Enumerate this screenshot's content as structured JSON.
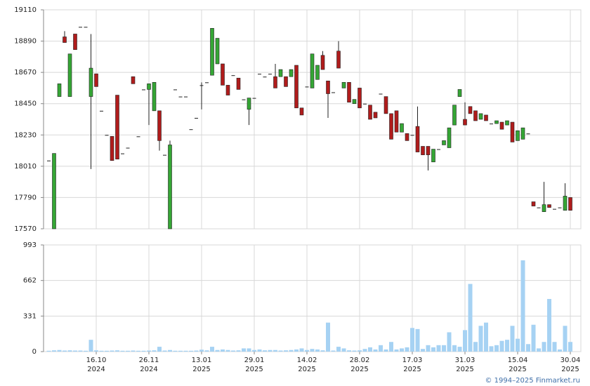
{
  "chart_data": [
    {
      "type": "candlestick",
      "up_color": "#35a635",
      "down_color": "#b01c1c",
      "ylim": [
        17570,
        19110
      ],
      "yticks": [
        17570,
        17790,
        18010,
        18230,
        18450,
        18670,
        18890,
        19110
      ],
      "grid": true,
      "open": [
        18050,
        17570,
        18500,
        18920,
        18500,
        18940,
        18990,
        18990,
        18500,
        18660,
        18400,
        18230,
        18220,
        18510,
        18100,
        18140,
        18640,
        18220,
        18550,
        18550,
        18400,
        18400,
        18090,
        17570,
        18550,
        18500,
        18500,
        18270,
        18350,
        18580,
        18600,
        18650,
        18730,
        18730,
        18580,
        18650,
        18630,
        18480,
        18410,
        18490,
        18660,
        18640,
        18660,
        18640,
        18640,
        18640,
        18640,
        18720,
        18420,
        18570,
        18560,
        18620,
        18790,
        18610,
        18530,
        18820,
        18560,
        18600,
        18450,
        18560,
        18450,
        18440,
        18390,
        18520,
        18500,
        18380,
        18400,
        18250,
        18240,
        18230,
        18290,
        18150,
        18150,
        18040,
        18130,
        18160,
        18140,
        18300,
        18500,
        18340,
        18430,
        18400,
        18340,
        18370,
        18310,
        18310,
        18320,
        18300,
        18320,
        18190,
        18200,
        18240,
        17760,
        17720,
        17690,
        17740,
        17710,
        17720,
        17700,
        17790
      ],
      "high": [
        18050,
        18100,
        18590,
        18960,
        18800,
        18940,
        18990,
        18990,
        18940,
        18660,
        18400,
        18230,
        18220,
        18510,
        18100,
        18140,
        18640,
        18220,
        18550,
        18590,
        18600,
        18400,
        18090,
        18190,
        18550,
        18500,
        18500,
        18270,
        18350,
        18600,
        18600,
        18980,
        18910,
        18730,
        18580,
        18650,
        18630,
        18480,
        18490,
        18490,
        18660,
        18640,
        18660,
        18730,
        18690,
        18640,
        18690,
        18720,
        18420,
        18570,
        18800,
        18720,
        18820,
        18610,
        18530,
        18890,
        18600,
        18600,
        18480,
        18560,
        18450,
        18440,
        18390,
        18520,
        18500,
        18380,
        18400,
        18310,
        18240,
        18230,
        18430,
        18150,
        18150,
        18130,
        18130,
        18190,
        18280,
        18440,
        18550,
        18460,
        18430,
        18400,
        18380,
        18370,
        18310,
        18330,
        18320,
        18330,
        18320,
        18260,
        18280,
        18240,
        17760,
        17720,
        17900,
        17740,
        17710,
        17720,
        17890,
        17790
      ],
      "low": [
        18050,
        17570,
        18500,
        18880,
        18500,
        18830,
        18990,
        18990,
        17990,
        18570,
        18400,
        18230,
        18050,
        18060,
        18100,
        18140,
        18590,
        18220,
        18550,
        18300,
        18400,
        18120,
        18090,
        17570,
        18550,
        18500,
        18500,
        18270,
        18350,
        18410,
        18600,
        18650,
        18730,
        18580,
        18510,
        18650,
        18550,
        18480,
        18300,
        18490,
        18660,
        18640,
        18660,
        18560,
        18640,
        18570,
        18640,
        18420,
        18370,
        18570,
        18560,
        18620,
        18690,
        18350,
        18530,
        18700,
        18560,
        18460,
        18450,
        18420,
        18450,
        18340,
        18350,
        18520,
        18380,
        18200,
        18250,
        18250,
        18190,
        18230,
        18110,
        18090,
        17980,
        18040,
        18130,
        18160,
        18140,
        18300,
        18500,
        18300,
        18380,
        18330,
        18340,
        18330,
        18310,
        18310,
        18270,
        18300,
        18180,
        18190,
        18200,
        18240,
        17730,
        17720,
        17690,
        17720,
        17710,
        17720,
        17700,
        17700
      ],
      "close": [
        18050,
        18100,
        18590,
        18880,
        18800,
        18830,
        18990,
        18990,
        18700,
        18570,
        18400,
        18230,
        18050,
        18060,
        18100,
        18140,
        18590,
        18220,
        18550,
        18590,
        18600,
        18190,
        18090,
        18160,
        18550,
        18500,
        18500,
        18270,
        18350,
        18580,
        18600,
        18980,
        18910,
        18580,
        18510,
        18650,
        18550,
        18480,
        18490,
        18490,
        18660,
        18640,
        18660,
        18560,
        18690,
        18570,
        18690,
        18420,
        18370,
        18570,
        18800,
        18720,
        18690,
        18520,
        18530,
        18700,
        18600,
        18460,
        18480,
        18420,
        18450,
        18340,
        18350,
        18520,
        18380,
        18200,
        18250,
        18310,
        18190,
        18230,
        18110,
        18090,
        18090,
        18130,
        18130,
        18190,
        18280,
        18440,
        18550,
        18300,
        18380,
        18330,
        18380,
        18330,
        18310,
        18330,
        18270,
        18330,
        18180,
        18260,
        18280,
        18240,
        17730,
        17720,
        17740,
        17720,
        17710,
        17720,
        17800,
        17700
      ]
    },
    {
      "type": "bar",
      "color": "#a6d2f3",
      "ylim": [
        0,
        993
      ],
      "yticks": [
        0,
        331,
        662,
        993
      ],
      "grid": true,
      "categories": [
        null,
        null,
        null,
        null,
        null,
        null,
        null,
        null,
        null,
        "16.10\n2024",
        null,
        null,
        null,
        null,
        null,
        null,
        null,
        null,
        null,
        "26.11\n2024",
        null,
        null,
        null,
        null,
        null,
        null,
        null,
        null,
        null,
        "13.01\n2025",
        null,
        null,
        null,
        null,
        null,
        null,
        null,
        null,
        null,
        "29.01\n2025",
        null,
        null,
        null,
        null,
        null,
        null,
        null,
        null,
        null,
        "14.02\n2025",
        null,
        null,
        null,
        null,
        null,
        null,
        null,
        null,
        null,
        "28.02\n2025",
        null,
        null,
        null,
        null,
        null,
        null,
        null,
        null,
        null,
        "17.03\n2025",
        null,
        null,
        null,
        null,
        null,
        null,
        null,
        null,
        null,
        "31.03\n2025",
        null,
        null,
        null,
        null,
        null,
        null,
        null,
        null,
        null,
        "15.04\n2025",
        null,
        null,
        null,
        null,
        null,
        null,
        null,
        null,
        null,
        "30.04\n2025"
      ],
      "values": [
        8,
        12,
        15,
        10,
        12,
        10,
        10,
        8,
        110,
        12,
        8,
        8,
        10,
        12,
        8,
        8,
        10,
        8,
        8,
        10,
        12,
        45,
        10,
        15,
        8,
        8,
        8,
        8,
        10,
        18,
        12,
        45,
        15,
        20,
        15,
        10,
        12,
        30,
        30,
        15,
        20,
        12,
        15,
        15,
        10,
        12,
        15,
        20,
        30,
        15,
        25,
        20,
        12,
        270,
        10,
        45,
        30,
        12,
        10,
        12,
        25,
        40,
        20,
        60,
        20,
        90,
        20,
        30,
        40,
        220,
        210,
        25,
        60,
        40,
        60,
        60,
        180,
        60,
        45,
        200,
        630,
        90,
        240,
        270,
        50,
        60,
        100,
        110,
        240,
        120,
        850,
        70,
        250,
        30,
        90,
        490,
        90,
        20,
        240,
        90
      ]
    }
  ],
  "credit": "© 1994–2025 Finmarket.ru"
}
